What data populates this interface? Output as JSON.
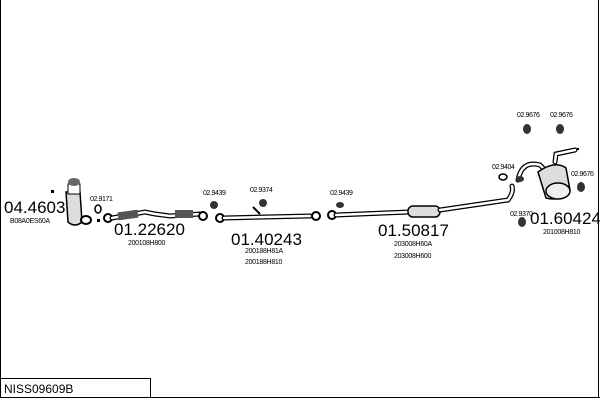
{
  "diagram_code": "NISS09609B",
  "parts": [
    {
      "number": "04.4603",
      "oe": [
        "B08A0ES60A"
      ]
    },
    {
      "number": "01.22620",
      "oe": [
        "200108H800"
      ]
    },
    {
      "number": "01.40243",
      "oe": [
        "200188H81A",
        "200188H810"
      ]
    },
    {
      "number": "01.50817",
      "oe": [
        "203008H60A",
        "203008H600"
      ]
    },
    {
      "number": "01.60424",
      "oe": [
        "201008H810"
      ]
    }
  ],
  "accessories": [
    "02.9171",
    "02.9439",
    "02.9374",
    "02.9439",
    "02.9676",
    "02.9676",
    "02.9676",
    "02.9404",
    "02.9370"
  ]
}
